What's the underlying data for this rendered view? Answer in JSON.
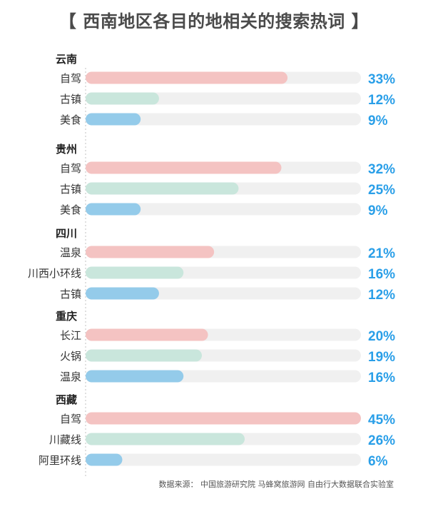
{
  "header": {
    "title": "【 西南地区各目的地相关的搜索热词 】"
  },
  "colors": {
    "track": "#f0f0f0",
    "bar_pink": "#f4c3c2",
    "bar_green": "#c9e6dc",
    "bar_blue": "#94cbea",
    "value_text": "#2a9fe8",
    "axis": "#cccccc"
  },
  "chart_data": {
    "type": "bar",
    "orientation": "horizontal",
    "title": "【 西南地区各目的地相关的搜索热词 】",
    "xlim": [
      0,
      45
    ],
    "value_suffix": "%",
    "groups": [
      {
        "name": "云南",
        "items": [
          {
            "label": "自驾",
            "value": 33
          },
          {
            "label": "古镇",
            "value": 12
          },
          {
            "label": "美食",
            "value": 9
          }
        ]
      },
      {
        "name": "贵州",
        "items": [
          {
            "label": "自驾",
            "value": 32
          },
          {
            "label": "古镇",
            "value": 25
          },
          {
            "label": "美食",
            "value": 9
          }
        ]
      },
      {
        "name": "四川",
        "items": [
          {
            "label": "温泉",
            "value": 21
          },
          {
            "label": "川西小环线",
            "value": 16
          },
          {
            "label": "古镇",
            "value": 12
          }
        ]
      },
      {
        "name": "重庆",
        "items": [
          {
            "label": "长江",
            "value": 20
          },
          {
            "label": "火锅",
            "value": 19
          },
          {
            "label": "温泉",
            "value": 16
          }
        ]
      },
      {
        "name": "西藏",
        "items": [
          {
            "label": "自驾",
            "value": 45
          },
          {
            "label": "川藏线",
            "value": 26
          },
          {
            "label": "阿里环线",
            "value": 6
          }
        ]
      }
    ]
  },
  "footer": {
    "source": "数据来源：  中国旅游研究院  马蜂窝旅游网  自由行大数据联合实验室"
  }
}
